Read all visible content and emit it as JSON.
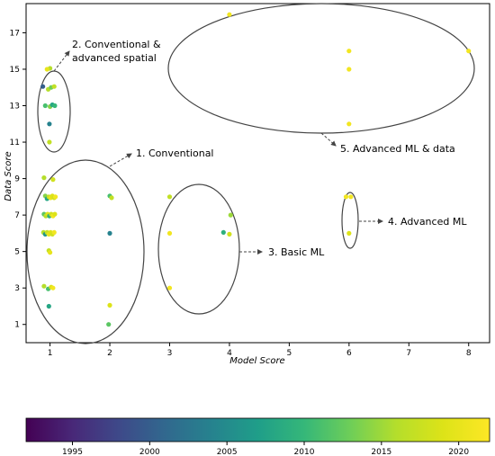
{
  "chart_data": {
    "type": "scatter",
    "xlabel": "Model Score",
    "ylabel": "Data Score",
    "xlim": [
      0.6,
      8.35
    ],
    "ylim": [
      0,
      18.6
    ],
    "xticks": [
      1,
      2,
      3,
      4,
      5,
      6,
      7,
      8
    ],
    "yticks": [
      1,
      3,
      5,
      7,
      9,
      11,
      13,
      15,
      17
    ],
    "grid": false,
    "colorbar": {
      "colormap": "viridis",
      "range": [
        1992,
        2022
      ],
      "ticks": [
        1995,
        2000,
        2005,
        2010,
        2015,
        2020
      ],
      "orientation": "horizontal",
      "placement": "bottom"
    },
    "points": [
      {
        "x": 1.0,
        "y": 15.05,
        "year": 2016
      },
      {
        "x": 0.95,
        "y": 15.0,
        "year": 2020
      },
      {
        "x": 0.88,
        "y": 14.05,
        "year": 2000
      },
      {
        "x": 0.97,
        "y": 13.9,
        "year": 2016
      },
      {
        "x": 1.02,
        "y": 14.0,
        "year": 2013
      },
      {
        "x": 1.07,
        "y": 14.05,
        "year": 2017
      },
      {
        "x": 0.92,
        "y": 13.0,
        "year": 2011
      },
      {
        "x": 1.0,
        "y": 12.95,
        "year": 2014
      },
      {
        "x": 1.04,
        "y": 13.05,
        "year": 2008
      },
      {
        "x": 1.08,
        "y": 13.0,
        "year": 2010
      },
      {
        "x": 0.99,
        "y": 12.0,
        "year": 2004
      },
      {
        "x": 0.99,
        "y": 11.0,
        "year": 2017
      },
      {
        "x": 0.9,
        "y": 9.05,
        "year": 2016
      },
      {
        "x": 1.05,
        "y": 8.95,
        "year": 2018
      },
      {
        "x": 0.92,
        "y": 8.05,
        "year": 2014
      },
      {
        "x": 0.95,
        "y": 7.9,
        "year": 2008
      },
      {
        "x": 0.98,
        "y": 8.0,
        "year": 2017
      },
      {
        "x": 1.01,
        "y": 7.95,
        "year": 2020
      },
      {
        "x": 1.04,
        "y": 8.05,
        "year": 2019
      },
      {
        "x": 1.07,
        "y": 7.95,
        "year": 2018
      },
      {
        "x": 1.09,
        "y": 8.0,
        "year": 2021
      },
      {
        "x": 0.9,
        "y": 7.05,
        "year": 2012
      },
      {
        "x": 0.93,
        "y": 6.95,
        "year": 2016
      },
      {
        "x": 0.96,
        "y": 7.05,
        "year": 2019
      },
      {
        "x": 0.99,
        "y": 6.95,
        "year": 2009
      },
      {
        "x": 1.02,
        "y": 7.05,
        "year": 2018
      },
      {
        "x": 1.05,
        "y": 6.95,
        "year": 2021
      },
      {
        "x": 1.08,
        "y": 7.05,
        "year": 2019
      },
      {
        "x": 0.89,
        "y": 6.05,
        "year": 2016
      },
      {
        "x": 0.92,
        "y": 5.95,
        "year": 2006
      },
      {
        "x": 0.95,
        "y": 6.05,
        "year": 2017
      },
      {
        "x": 0.98,
        "y": 5.95,
        "year": 2020
      },
      {
        "x": 1.01,
        "y": 6.05,
        "year": 2019
      },
      {
        "x": 1.04,
        "y": 5.95,
        "year": 2018
      },
      {
        "x": 1.07,
        "y": 6.05,
        "year": 2021
      },
      {
        "x": 0.98,
        "y": 5.05,
        "year": 2017
      },
      {
        "x": 1.0,
        "y": 4.95,
        "year": 2020
      },
      {
        "x": 0.9,
        "y": 3.1,
        "year": 2016
      },
      {
        "x": 0.97,
        "y": 2.95,
        "year": 2011
      },
      {
        "x": 1.02,
        "y": 3.05,
        "year": 2019
      },
      {
        "x": 1.05,
        "y": 3.0,
        "year": 2021
      },
      {
        "x": 0.98,
        "y": 2.0,
        "year": 2008
      },
      {
        "x": 2.0,
        "y": 8.05,
        "year": 2011
      },
      {
        "x": 2.03,
        "y": 7.95,
        "year": 2017
      },
      {
        "x": 2.0,
        "y": 6.0,
        "year": 2004
      },
      {
        "x": 2.0,
        "y": 2.05,
        "year": 2019
      },
      {
        "x": 1.98,
        "y": 1.0,
        "year": 2012
      },
      {
        "x": 3.0,
        "y": 8.0,
        "year": 2017
      },
      {
        "x": 3.0,
        "y": 6.0,
        "year": 2021
      },
      {
        "x": 3.0,
        "y": 3.0,
        "year": 2021
      },
      {
        "x": 4.02,
        "y": 7.0,
        "year": 2015
      },
      {
        "x": 3.9,
        "y": 6.05,
        "year": 2009
      },
      {
        "x": 4.0,
        "y": 5.95,
        "year": 2018
      },
      {
        "x": 4.0,
        "y": 18.0,
        "year": 2021
      },
      {
        "x": 5.95,
        "y": 8.0,
        "year": 2021
      },
      {
        "x": 6.03,
        "y": 8.0,
        "year": 2021
      },
      {
        "x": 6.0,
        "y": 6.0,
        "year": 2019
      },
      {
        "x": 6.0,
        "y": 16.0,
        "year": 2021
      },
      {
        "x": 6.0,
        "y": 15.0,
        "year": 2021
      },
      {
        "x": 6.0,
        "y": 12.0,
        "year": 2021
      },
      {
        "x": 8.0,
        "y": 16.0,
        "year": 2021
      }
    ],
    "annotations": [
      {
        "text_lines": [
          "2. Conventional &",
          "advanced spatial"
        ]
      },
      {
        "text_lines": [
          "1. Conventional"
        ]
      },
      {
        "text_lines": [
          "3. Basic ML"
        ]
      },
      {
        "text_lines": [
          "4. Advanced ML"
        ]
      },
      {
        "text_lines": [
          "5. Advanced ML & data"
        ]
      }
    ]
  }
}
